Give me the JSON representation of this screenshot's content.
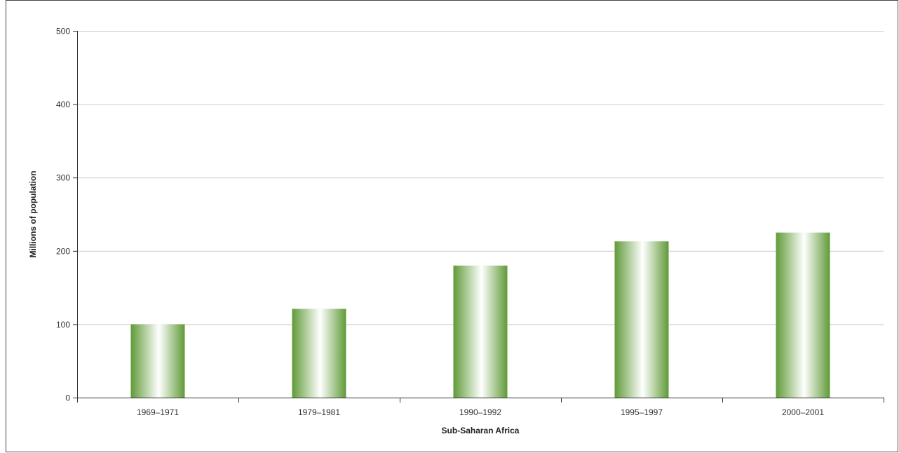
{
  "chart_data": {
    "type": "bar",
    "title": "",
    "xlabel": "Sub-Saharan Africa",
    "ylabel": "Millions of population",
    "categories": [
      "1969–1971",
      "1979–1981",
      "1990–1992",
      "1995–1997",
      "2000–2001"
    ],
    "values": [
      100,
      121,
      180,
      213,
      225
    ],
    "ylim": [
      0,
      500
    ],
    "yticks": [
      0,
      100,
      200,
      300,
      400,
      500
    ],
    "grid": true,
    "legend": "none",
    "bar_color": "#5f9a37",
    "bar_highlight_color": "#ffffff"
  }
}
